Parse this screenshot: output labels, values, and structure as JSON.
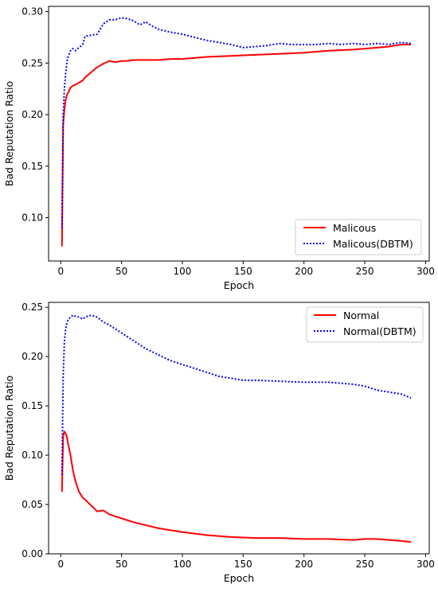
{
  "chart_data": [
    {
      "type": "line",
      "xlabel": "Epoch",
      "ylabel": "Bad Reputation Ratio",
      "xlim": [
        -10,
        303
      ],
      "ylim": [
        0.058,
        0.305
      ],
      "xticks": [
        0,
        50,
        100,
        150,
        200,
        250,
        300
      ],
      "yticks": [
        0.1,
        0.15,
        0.2,
        0.25,
        0.3
      ],
      "ytick_labels": [
        "0.10",
        "0.15",
        "0.20",
        "0.25",
        "0.30"
      ],
      "legend_position": "lower-right",
      "series": [
        {
          "name": "Malicous",
          "color": "#ff0000",
          "style": "solid",
          "x": [
            1,
            2,
            3,
            4,
            5,
            6,
            8,
            10,
            12,
            15,
            18,
            20,
            22,
            25,
            28,
            30,
            33,
            36,
            40,
            45,
            50,
            55,
            60,
            70,
            80,
            90,
            100,
            120,
            140,
            160,
            180,
            200,
            220,
            240,
            250,
            260,
            270,
            280,
            288
          ],
          "y": [
            0.072,
            0.19,
            0.205,
            0.214,
            0.219,
            0.221,
            0.226,
            0.228,
            0.229,
            0.231,
            0.233,
            0.236,
            0.238,
            0.241,
            0.244,
            0.246,
            0.248,
            0.25,
            0.252,
            0.251,
            0.252,
            0.252,
            0.253,
            0.253,
            0.253,
            0.254,
            0.254,
            0.256,
            0.257,
            0.258,
            0.259,
            0.26,
            0.262,
            0.263,
            0.264,
            0.265,
            0.266,
            0.268,
            0.268
          ]
        },
        {
          "name": "Malicous(DBTM)",
          "color": "#0000ff",
          "style": "dotted",
          "x": [
            1,
            2,
            3,
            4,
            5,
            6,
            8,
            10,
            12,
            15,
            18,
            20,
            25,
            30,
            35,
            40,
            45,
            50,
            55,
            60,
            65,
            70,
            75,
            80,
            90,
            100,
            110,
            120,
            130,
            140,
            150,
            160,
            170,
            180,
            190,
            200,
            210,
            220,
            230,
            240,
            250,
            260,
            270,
            280,
            288
          ],
          "y": [
            0.09,
            0.2,
            0.225,
            0.24,
            0.25,
            0.256,
            0.262,
            0.264,
            0.262,
            0.265,
            0.268,
            0.276,
            0.277,
            0.278,
            0.288,
            0.292,
            0.292,
            0.294,
            0.293,
            0.291,
            0.287,
            0.29,
            0.286,
            0.283,
            0.28,
            0.278,
            0.275,
            0.272,
            0.27,
            0.268,
            0.265,
            0.266,
            0.267,
            0.269,
            0.268,
            0.268,
            0.268,
            0.269,
            0.268,
            0.269,
            0.268,
            0.269,
            0.268,
            0.27,
            0.269
          ]
        }
      ]
    },
    {
      "type": "line",
      "xlabel": "Epoch",
      "ylabel": "Bad Reputation Ratio",
      "xlim": [
        -10,
        303
      ],
      "ylim": [
        0.0,
        0.255
      ],
      "xticks": [
        0,
        50,
        100,
        150,
        200,
        250,
        300
      ],
      "yticks": [
        0.0,
        0.05,
        0.1,
        0.15,
        0.2,
        0.25
      ],
      "ytick_labels": [
        "0.00",
        "0.05",
        "0.10",
        "0.15",
        "0.20",
        "0.25"
      ],
      "legend_position": "upper-right",
      "series": [
        {
          "name": "Normal",
          "color": "#ff0000",
          "style": "solid",
          "x": [
            1,
            2,
            3,
            4,
            5,
            6,
            8,
            10,
            12,
            15,
            18,
            20,
            25,
            30,
            35,
            40,
            45,
            50,
            55,
            60,
            70,
            80,
            90,
            100,
            120,
            140,
            160,
            180,
            200,
            220,
            240,
            250,
            260,
            270,
            280,
            288
          ],
          "y": [
            0.063,
            0.12,
            0.124,
            0.122,
            0.119,
            0.112,
            0.1,
            0.085,
            0.074,
            0.063,
            0.057,
            0.055,
            0.049,
            0.043,
            0.044,
            0.04,
            0.038,
            0.036,
            0.034,
            0.032,
            0.029,
            0.026,
            0.024,
            0.022,
            0.019,
            0.017,
            0.016,
            0.016,
            0.015,
            0.015,
            0.014,
            0.015,
            0.015,
            0.014,
            0.013,
            0.012
          ]
        },
        {
          "name": "Normal(DBTM)",
          "color": "#0000ff",
          "style": "dotted",
          "x": [
            1,
            2,
            3,
            4,
            5,
            6,
            8,
            10,
            12,
            15,
            18,
            20,
            25,
            30,
            35,
            40,
            45,
            50,
            55,
            60,
            70,
            80,
            90,
            100,
            110,
            120,
            130,
            140,
            150,
            160,
            180,
            200,
            220,
            240,
            250,
            260,
            270,
            280,
            288
          ],
          "y": [
            0.08,
            0.18,
            0.215,
            0.228,
            0.234,
            0.237,
            0.24,
            0.242,
            0.241,
            0.24,
            0.238,
            0.24,
            0.242,
            0.24,
            0.235,
            0.232,
            0.228,
            0.224,
            0.22,
            0.216,
            0.208,
            0.202,
            0.196,
            0.192,
            0.188,
            0.184,
            0.18,
            0.178,
            0.176,
            0.176,
            0.175,
            0.174,
            0.174,
            0.172,
            0.17,
            0.166,
            0.164,
            0.162,
            0.158
          ]
        }
      ]
    }
  ]
}
